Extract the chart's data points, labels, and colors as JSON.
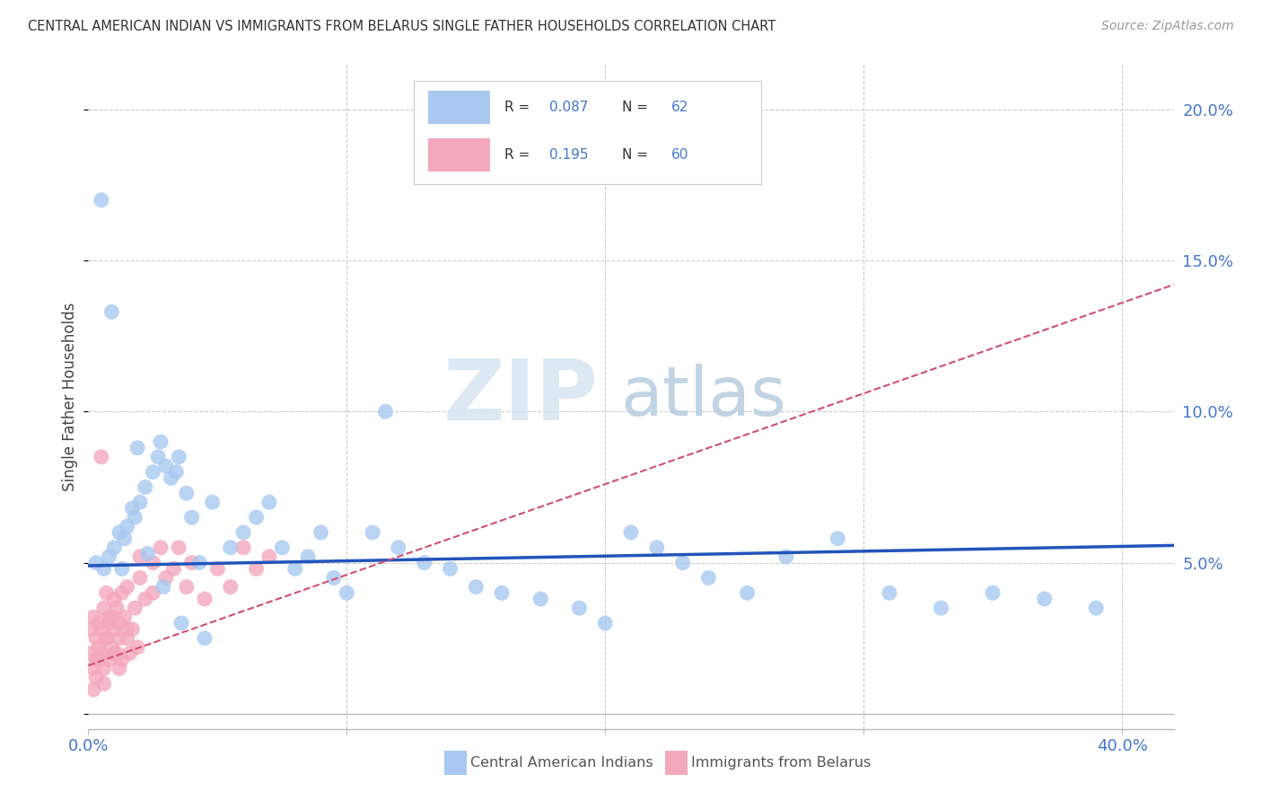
{
  "title": "CENTRAL AMERICAN INDIAN VS IMMIGRANTS FROM BELARUS SINGLE FATHER HOUSEHOLDS CORRELATION CHART",
  "source": "Source: ZipAtlas.com",
  "ylabel": "Single Father Households",
  "xlim": [
    0.0,
    0.42
  ],
  "ylim": [
    -0.005,
    0.215
  ],
  "yticks": [
    0.0,
    0.05,
    0.1,
    0.15,
    0.2
  ],
  "ytick_labels_right": [
    "",
    "5.0%",
    "10.0%",
    "15.0%",
    "20.0%"
  ],
  "xticks": [
    0.0,
    0.1,
    0.2,
    0.3,
    0.4
  ],
  "xtick_labels": [
    "0.0%",
    "",
    "",
    "",
    "40.0%"
  ],
  "legend1_R": "0.087",
  "legend1_N": "62",
  "legend2_R": "0.195",
  "legend2_N": "60",
  "color_blue": "#a8c8f0",
  "color_pink": "#f4a8bc",
  "color_line_blue": "#2255bb",
  "color_line_pink": "#d05070",
  "color_val_blue": "#4477cc",
  "watermark_zip": "ZIP",
  "watermark_atlas": "atlas",
  "background_color": "#ffffff",
  "grid_color": "#cccccc",
  "blue_line_intercept": 0.049,
  "blue_line_slope": 0.016,
  "pink_line_intercept": 0.016,
  "pink_line_slope": 0.3,
  "blue_x": [
    0.003,
    0.006,
    0.008,
    0.01,
    0.012,
    0.014,
    0.015,
    0.017,
    0.018,
    0.02,
    0.022,
    0.025,
    0.027,
    0.028,
    0.03,
    0.032,
    0.034,
    0.035,
    0.038,
    0.04,
    0.043,
    0.048,
    0.055,
    0.06,
    0.065,
    0.07,
    0.075,
    0.08,
    0.085,
    0.09,
    0.095,
    0.1,
    0.11,
    0.115,
    0.12,
    0.13,
    0.14,
    0.15,
    0.16,
    0.175,
    0.19,
    0.2,
    0.21,
    0.22,
    0.23,
    0.24,
    0.255,
    0.27,
    0.29,
    0.31,
    0.33,
    0.35,
    0.37,
    0.39,
    0.005,
    0.009,
    0.013,
    0.019,
    0.023,
    0.029,
    0.036,
    0.045
  ],
  "blue_y": [
    0.05,
    0.048,
    0.052,
    0.055,
    0.06,
    0.058,
    0.062,
    0.068,
    0.065,
    0.07,
    0.075,
    0.08,
    0.085,
    0.09,
    0.082,
    0.078,
    0.08,
    0.085,
    0.073,
    0.065,
    0.05,
    0.07,
    0.055,
    0.06,
    0.065,
    0.07,
    0.055,
    0.048,
    0.052,
    0.06,
    0.045,
    0.04,
    0.06,
    0.1,
    0.055,
    0.05,
    0.048,
    0.042,
    0.04,
    0.038,
    0.035,
    0.03,
    0.06,
    0.055,
    0.05,
    0.045,
    0.04,
    0.052,
    0.058,
    0.04,
    0.035,
    0.04,
    0.038,
    0.035,
    0.17,
    0.133,
    0.048,
    0.088,
    0.053,
    0.042,
    0.03,
    0.025
  ],
  "pink_x": [
    0.001,
    0.001,
    0.002,
    0.002,
    0.003,
    0.003,
    0.004,
    0.004,
    0.005,
    0.005,
    0.006,
    0.006,
    0.007,
    0.007,
    0.008,
    0.008,
    0.009,
    0.009,
    0.01,
    0.01,
    0.011,
    0.011,
    0.012,
    0.012,
    0.013,
    0.013,
    0.014,
    0.015,
    0.015,
    0.016,
    0.017,
    0.018,
    0.019,
    0.02,
    0.02,
    0.022,
    0.025,
    0.025,
    0.028,
    0.03,
    0.033,
    0.035,
    0.038,
    0.04,
    0.045,
    0.05,
    0.055,
    0.06,
    0.065,
    0.07,
    0.002,
    0.003,
    0.004,
    0.005,
    0.006,
    0.007,
    0.008,
    0.01,
    0.012,
    0.015
  ],
  "pink_y": [
    0.02,
    0.028,
    0.015,
    0.032,
    0.018,
    0.025,
    0.022,
    0.03,
    0.02,
    0.028,
    0.015,
    0.035,
    0.025,
    0.04,
    0.018,
    0.03,
    0.022,
    0.032,
    0.028,
    0.038,
    0.02,
    0.035,
    0.025,
    0.03,
    0.018,
    0.04,
    0.032,
    0.025,
    0.042,
    0.02,
    0.028,
    0.035,
    0.022,
    0.045,
    0.052,
    0.038,
    0.05,
    0.04,
    0.055,
    0.045,
    0.048,
    0.055,
    0.042,
    0.05,
    0.038,
    0.048,
    0.042,
    0.055,
    0.048,
    0.052,
    0.008,
    0.012,
    0.018,
    0.085,
    0.01,
    0.025,
    0.032,
    0.02,
    0.015,
    0.028
  ]
}
